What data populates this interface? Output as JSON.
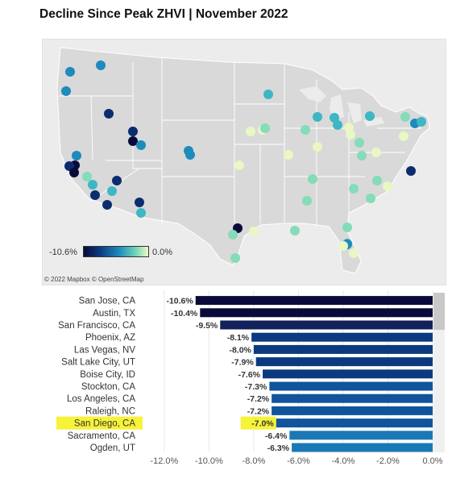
{
  "title": "Decline Since Peak ZHVI | November 2022",
  "map": {
    "legend_min": "-10.6%",
    "legend_max": "0.0%",
    "attribution": "© 2022 Mapbox  © OpenStreetMap",
    "color_scale": [
      "#0a0a3a",
      "#0b2d6e",
      "#0f5a9e",
      "#1e8bbd",
      "#3cb7c3",
      "#84dcb8",
      "#e8f7c4"
    ]
  },
  "chart_data": {
    "type": "bar",
    "orientation": "horizontal",
    "categories": [
      "San Jose, CA",
      "Austin, TX",
      "San Francisco, CA",
      "Phoenix, AZ",
      "Las Vegas, NV",
      "Salt Lake City, UT",
      "Boise City, ID",
      "Stockton, CA",
      "Los Angeles, CA",
      "Raleigh, NC",
      "San Diego, CA",
      "Sacramento, CA",
      "Ogden, UT"
    ],
    "values": [
      -10.6,
      -10.4,
      -9.5,
      -8.1,
      -8.0,
      -7.9,
      -7.6,
      -7.3,
      -7.2,
      -7.2,
      -7.0,
      -6.4,
      -6.3
    ],
    "value_labels": [
      "-10.6%",
      "-10.4%",
      "-9.5%",
      "-8.1%",
      "-8.0%",
      "-7.9%",
      "-7.6%",
      "-7.3%",
      "-7.2%",
      "-7.2%",
      "-7.0%",
      "-6.4%",
      "-6.3%"
    ],
    "highlighted": "San Diego, CA",
    "highlight_color": "#f7f23a",
    "xlim": [
      -12.5,
      0
    ],
    "xticks": [
      -12,
      -10,
      -8,
      -6,
      -4,
      -2,
      0
    ],
    "xtick_labels": [
      "-12.0%",
      "-10.0%",
      "-8.0%",
      "-6.0%",
      "-4.0%",
      "-2.0%",
      "0.0%"
    ],
    "grid": true,
    "color_scale": [
      "#0a0a3a",
      "#0b2d6e",
      "#0f5a9e",
      "#1e8bbd"
    ]
  }
}
